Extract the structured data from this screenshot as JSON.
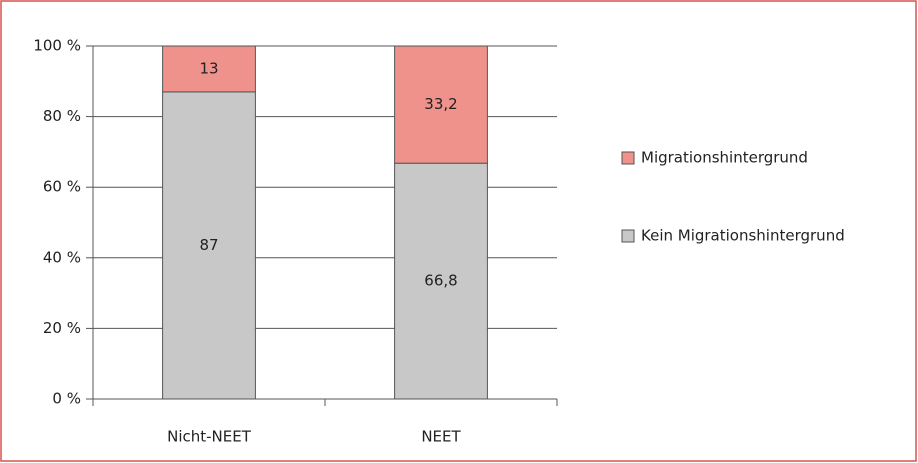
{
  "chart_data": {
    "type": "stacked_bar",
    "categories": [
      "Nicht-NEET",
      "NEET"
    ],
    "series": [
      {
        "name": "Kein Migrationshintergrund",
        "color": "#c8c8c8",
        "values": [
          87,
          66.8
        ],
        "value_labels": [
          "87",
          "66,8"
        ]
      },
      {
        "name": "Migrationshintergrund",
        "color": "#f0928c",
        "values": [
          13,
          33.2
        ],
        "value_labels": [
          "13",
          "33,2"
        ]
      }
    ],
    "ylim": [
      0,
      100
    ],
    "yticks": [
      {
        "value": 0,
        "label": "0 %"
      },
      {
        "value": 20,
        "label": "20 %"
      },
      {
        "value": 40,
        "label": "40 %"
      },
      {
        "value": 60,
        "label": "60 %"
      },
      {
        "value": 80,
        "label": "80 %"
      },
      {
        "value": 100,
        "label": "100 %"
      }
    ],
    "grid": true,
    "legend": "right"
  }
}
